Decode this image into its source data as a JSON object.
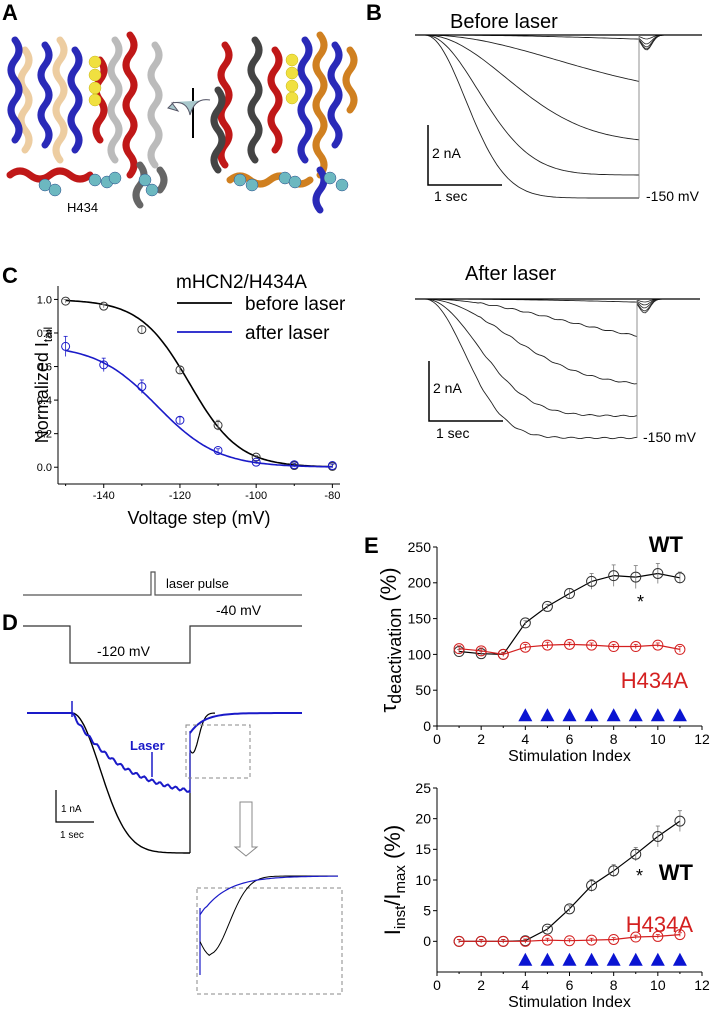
{
  "panels": {
    "A": {
      "letter": "A",
      "residue_label": "H434"
    },
    "B": {
      "letter": "B",
      "before_title": "Before laser",
      "after_title": "After laser",
      "scale_current": "2 nA",
      "scale_time": "1 sec",
      "voltage_label": "-150 mV"
    },
    "C": {
      "letter": "C"
    },
    "D": {
      "letter": "D",
      "laser_pulse_label": "laser pulse",
      "holding_label": "-40 mV",
      "step_label": "-120 mV",
      "laser_label": "Laser",
      "scale_current": "1 nA",
      "scale_time": "1 sec"
    },
    "E": {
      "letter": "E"
    }
  },
  "colors": {
    "black": "#000000",
    "blue": "#1a1ac8",
    "red": "#d42020",
    "triangle": "#0a14d2",
    "structure_red": "#c01818",
    "structure_blue": "#2020b0",
    "structure_orange": "#d08020",
    "structure_gray": "#555555"
  },
  "chart_data": [
    {
      "id": "C",
      "type": "line",
      "title": "mHCN2/H434A",
      "xlabel": "Voltage step (mV)",
      "ylabel": "Normalized I",
      "ylabel_sub": "tail",
      "xlim": [
        -152,
        -78
      ],
      "ylim": [
        -0.1,
        1.08
      ],
      "xticks": [
        -140,
        -120,
        -100,
        -80
      ],
      "yticks": [
        0.0,
        0.2,
        0.4,
        0.6,
        0.8,
        1.0
      ],
      "ytick_labels": [
        "0.0",
        "0.2",
        "0.4",
        "0.6",
        "0.8",
        "1.0"
      ],
      "legend": "top-right",
      "series": [
        {
          "name": "before laser",
          "color": "#000000",
          "x": [
            -150,
            -140,
            -130,
            -120,
            -110,
            -100,
            -90,
            -80
          ],
          "y": [
            0.99,
            0.96,
            0.82,
            0.58,
            0.25,
            0.06,
            0.01,
            0.005
          ],
          "err": [
            0.01,
            0.01,
            0.02,
            0.02,
            0.03,
            0.01,
            0.01,
            0.01
          ],
          "fit": {
            "amp": 1.0,
            "v_half": -117.5,
            "k": 6.5
          }
        },
        {
          "name": "after laser",
          "color": "#1a1ac8",
          "x": [
            -150,
            -140,
            -130,
            -120,
            -110,
            -100,
            -90,
            -80
          ],
          "y": [
            0.72,
            0.61,
            0.48,
            0.28,
            0.1,
            0.03,
            0.015,
            0.01
          ],
          "err": [
            0.06,
            0.04,
            0.04,
            0.02,
            0.01,
            0.01,
            0.01,
            0.01
          ],
          "fit": {
            "amp": 0.73,
            "v_half": -126,
            "k": 8
          }
        }
      ]
    },
    {
      "id": "E-top",
      "type": "line",
      "xlabel": "Stimulation Index",
      "ylabel": "τ",
      "ylabel_sub": "deactivation",
      "ylabel_suffix": " (%)",
      "xlim": [
        0,
        12
      ],
      "ylim": [
        0,
        250
      ],
      "xticks": [
        0,
        2,
        4,
        6,
        8,
        10,
        12
      ],
      "yticks": [
        0,
        50,
        100,
        150,
        200,
        250
      ],
      "annotations": [
        {
          "text": "WT",
          "color": "#000000"
        },
        {
          "text": "*",
          "at_x": 9
        },
        {
          "text": "H434A",
          "color": "#d42020"
        }
      ],
      "triangle_markers_x": [
        4,
        5,
        6,
        7,
        8,
        9,
        10,
        11
      ],
      "series": [
        {
          "name": "WT",
          "color": "#000000",
          "x": [
            1,
            2,
            3,
            4,
            5,
            6,
            7,
            8,
            9,
            10,
            11
          ],
          "y": [
            104,
            101,
            100,
            144,
            167,
            185,
            202,
            210,
            208,
            213,
            207
          ],
          "err": [
            3,
            3,
            2,
            3,
            3,
            7,
            11,
            15,
            16,
            14,
            8
          ]
        },
        {
          "name": "H434A",
          "color": "#d42020",
          "x": [
            1,
            2,
            3,
            4,
            5,
            6,
            7,
            8,
            9,
            10,
            11
          ],
          "y": [
            108,
            105,
            100,
            110,
            113,
            114,
            113,
            111,
            111,
            113,
            107
          ],
          "err": [
            4,
            4,
            3,
            4,
            4,
            3,
            3,
            3,
            3,
            3,
            4
          ]
        }
      ]
    },
    {
      "id": "E-bottom",
      "type": "line",
      "xlabel": "Stimulation Index",
      "ylabel": "I",
      "ylabel_parts": [
        "I",
        "inst",
        "/I",
        "max",
        " (%)"
      ],
      "xlim": [
        0,
        12
      ],
      "ylim": [
        -5,
        25
      ],
      "xticks": [
        0,
        2,
        4,
        6,
        8,
        10,
        12
      ],
      "yticks": [
        0,
        5,
        10,
        15,
        20,
        25
      ],
      "annotations": [
        {
          "text": "WT",
          "color": "#000000"
        },
        {
          "text": "*",
          "at_x": 9
        },
        {
          "text": "H434A",
          "color": "#d42020"
        }
      ],
      "triangle_markers_x": [
        4,
        5,
        6,
        7,
        8,
        9,
        10,
        11
      ],
      "series": [
        {
          "name": "WT",
          "color": "#000000",
          "x": [
            1,
            2,
            3,
            4,
            5,
            6,
            7,
            8,
            9,
            10,
            11
          ],
          "y": [
            0,
            0,
            0,
            0.1,
            2.0,
            5.3,
            9.1,
            11.5,
            14.2,
            17.1,
            19.6
          ],
          "err": [
            0.3,
            0.3,
            0.3,
            0.3,
            0.4,
            0.5,
            1.0,
            1.0,
            1.1,
            1.7,
            1.7
          ]
        },
        {
          "name": "H434A",
          "color": "#d42020",
          "x": [
            1,
            2,
            3,
            4,
            5,
            6,
            7,
            8,
            9,
            10,
            11
          ],
          "y": [
            0,
            0,
            0,
            0,
            0.2,
            0.1,
            0.2,
            0.3,
            0.7,
            0.8,
            1.1
          ],
          "err": [
            0.3,
            0.3,
            0.3,
            0.3,
            0.3,
            0.3,
            0.3,
            0.3,
            0.3,
            0.3,
            0.3
          ]
        }
      ]
    }
  ]
}
